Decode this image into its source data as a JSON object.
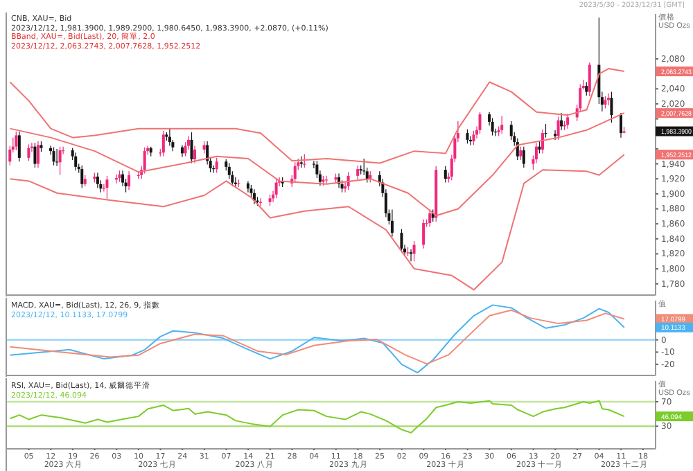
{
  "chart_data": [
    {
      "type": "candlestick",
      "title": "CNB, XAU=, Bid",
      "subtitle": "2023/12/12, 1,981.3900, 1,989.2900, 1,980.6450, 1,983.3900, +2.0870, (+0.11%)",
      "ylabel": "價格 USD Ozs",
      "tick_labels": "y",
      "colors": [
        "#f0287c",
        "#f0287c",
        "#f0287c",
        "#151515",
        "#f0287c",
        "#f0287c",
        "#151515",
        "#f0287c",
        "#151515",
        "#151515",
        "#151515",
        "#151515",
        "#f0287c",
        "#f0287c",
        "#151515",
        "#151515",
        "#151515",
        "#151515",
        "#f0287c",
        "#f0287c",
        "#151515",
        "#151515",
        "#f0287c",
        "#f0287c",
        "#f0287c",
        "#f0287c",
        "#151515",
        "#151515",
        "#f0287c",
        "#f0287c",
        "#f0287c",
        "#f0287c",
        "#f0287c",
        "#151515",
        "#f0287c",
        "#f0287c",
        "#151515",
        "#151515",
        "#151515",
        "#151515",
        "#f0287c",
        "#f0287c",
        "#151515",
        "#f0287c",
        "#f0287c",
        "#151515",
        "#151515",
        "#151515",
        "#f0287c",
        "#151515",
        "#151515",
        "#151515",
        "#151515",
        "#f0287c",
        "#151515",
        "#151515",
        "#151515",
        "#151515",
        "#f0287c",
        "#f0287c",
        "#f0287c",
        "#f0287c",
        "#f0287c",
        "#151515",
        "#f0287c",
        "#f0287c",
        "#f0287c",
        "#151515",
        "#f0287c",
        "#151515",
        "#151515",
        "#151515",
        "#f0287c",
        "#f0287c",
        "#f0287c",
        "#151515",
        "#151515",
        "#f0287c",
        "#f0287c",
        "#f0287c",
        "#151515",
        "#151515",
        "#151515",
        "#f0287c",
        "#151515",
        "#151515",
        "#151515",
        "#151515",
        "#151515",
        "#151515",
        "#151515",
        "#f0287c",
        "#151515",
        "#f0287c",
        "#f0287c",
        "#f0287c",
        "#f0287c",
        "#151515",
        "#f0287c",
        "#151515",
        "#f0287c",
        "#f0287c",
        "#f0287c",
        "#f0287c",
        "#151515",
        "#151515",
        "#f0287c",
        "#f0287c",
        "#f0287c",
        "#151515",
        "#151515",
        "#151515",
        "#f0287c",
        "#f0287c",
        "#151515",
        "#151515",
        "#151515",
        "#f0287c",
        "#151515",
        "#f0287c",
        "#f0287c",
        "#151515",
        "#f0287c",
        "#151515",
        "#151515",
        "#f0287c",
        "#151515",
        "#f0287c",
        "#f0287c",
        "#f0287c",
        "#f0287c",
        "#f0287c",
        "#151515",
        "#f0287c",
        "#151515",
        "#151515",
        "#f0287c",
        "#f0287c",
        "#151515",
        "#151515",
        "#f0287c"
      ],
      "xlim": [
        "2023-05-29",
        "2023-12-22"
      ],
      "ylim": [
        1765,
        2140
      ],
      "yticks": [
        {
          "value": 2063.2743,
          "label": "2,063.2743"
        },
        {
          "value": 2007.7628,
          "label": "2,007.7628"
        },
        {
          "value": 1983.39,
          "label": "1,983.3900"
        },
        {
          "value": 1952.2512,
          "label": "1,952.2512"
        },
        {
          "value": 2080,
          "label": "2,080"
        },
        {
          "value": 2060,
          "label": null
        },
        {
          "value": 2040,
          "label": "2,040"
        },
        {
          "value": 2020,
          "label": "2,020"
        },
        {
          "value": 2000,
          "label": null
        },
        {
          "value": 1980,
          "label": null
        },
        {
          "value": 1960,
          "label": null
        },
        {
          "value": 1940,
          "label": "1,940"
        },
        {
          "value": 1920,
          "label": "1,920"
        },
        {
          "value": 1900,
          "label": "1,900"
        },
        {
          "value": 1880,
          "label": "1,880"
        },
        {
          "value": 1860,
          "label": "1,860"
        },
        {
          "value": 1840,
          "label": "1,840"
        },
        {
          "value": 1820,
          "label": "1,820"
        },
        {
          "value": 1800,
          "label": "1,800"
        },
        {
          "value": 1780,
          "label": "1,780"
        }
      ],
      "x": [
        "2023-05-30",
        "2023-05-31",
        "2023-06-01",
        "2023-06-02",
        "2023-06-05",
        "2023-06-06",
        "2023-06-07",
        "2023-06-08",
        "2023-06-09",
        "2023-06-12",
        "2023-06-13",
        "2023-06-14",
        "2023-06-15",
        "2023-06-16",
        "2023-06-19",
        "2023-06-20",
        "2023-06-21",
        "2023-06-22",
        "2023-06-23",
        "2023-06-26",
        "2023-06-27",
        "2023-06-28",
        "2023-06-29",
        "2023-06-30",
        "2023-07-03",
        "2023-07-04",
        "2023-07-05",
        "2023-07-06",
        "2023-07-07",
        "2023-07-10",
        "2023-07-11",
        "2023-07-12",
        "2023-07-13",
        "2023-07-14",
        "2023-07-17",
        "2023-07-18",
        "2023-07-19",
        "2023-07-20",
        "2023-07-21",
        "2023-07-24",
        "2023-07-25",
        "2023-07-26",
        "2023-07-27",
        "2023-07-28",
        "2023-07-31",
        "2023-08-01",
        "2023-08-02",
        "2023-08-03",
        "2023-08-04",
        "2023-08-07",
        "2023-08-08",
        "2023-08-09",
        "2023-08-10",
        "2023-08-11",
        "2023-08-14",
        "2023-08-15",
        "2023-08-16",
        "2023-08-17",
        "2023-08-18",
        "2023-08-21",
        "2023-08-22",
        "2023-08-23",
        "2023-08-24",
        "2023-08-25",
        "2023-08-28",
        "2023-08-29",
        "2023-08-30",
        "2023-08-31",
        "2023-09-01",
        "2023-09-04",
        "2023-09-05",
        "2023-09-06",
        "2023-09-07",
        "2023-09-08",
        "2023-09-11",
        "2023-09-12",
        "2023-09-13",
        "2023-09-14",
        "2023-09-15",
        "2023-09-18",
        "2023-09-19",
        "2023-09-20",
        "2023-09-21",
        "2023-09-22",
        "2023-09-25",
        "2023-09-26",
        "2023-09-27",
        "2023-09-28",
        "2023-09-29",
        "2023-10-02",
        "2023-10-03",
        "2023-10-04",
        "2023-10-05",
        "2023-10-06",
        "2023-10-09",
        "2023-10-10",
        "2023-10-11",
        "2023-10-12",
        "2023-10-13",
        "2023-10-16",
        "2023-10-17",
        "2023-10-18",
        "2023-10-19",
        "2023-10-20",
        "2023-10-23",
        "2023-10-24",
        "2023-10-25",
        "2023-10-26",
        "2023-10-27",
        "2023-10-30",
        "2023-10-31",
        "2023-11-01",
        "2023-11-02",
        "2023-11-03",
        "2023-11-06",
        "2023-11-07",
        "2023-11-08",
        "2023-11-09",
        "2023-11-10",
        "2023-11-13",
        "2023-11-14",
        "2023-11-15",
        "2023-11-16",
        "2023-11-17",
        "2023-11-20",
        "2023-11-21",
        "2023-11-22",
        "2023-11-23",
        "2023-11-24",
        "2023-11-27",
        "2023-11-28",
        "2023-11-29",
        "2023-11-30",
        "2023-12-01",
        "2023-12-04",
        "2023-12-05",
        "2023-12-06",
        "2023-12-07",
        "2023-12-08",
        "2023-12-11",
        "2023-12-12"
      ],
      "ohlc": [
        [
          1943,
          1964,
          1938,
          1959
        ],
        [
          1959,
          1975,
          1955,
          1963
        ],
        [
          1963,
          1983,
          1958,
          1978
        ],
        [
          1978,
          1983,
          1943,
          1948
        ],
        [
          1948,
          1966,
          1944,
          1961
        ],
        [
          1961,
          1968,
          1956,
          1963
        ],
        [
          1963,
          1968,
          1935,
          1940
        ],
        [
          1940,
          1970,
          1935,
          1965
        ],
        [
          1965,
          1970,
          1956,
          1961
        ],
        [
          1961,
          1964,
          1952,
          1957
        ],
        [
          1957,
          1962,
          1938,
          1943
        ],
        [
          1943,
          1960,
          1937,
          1942
        ],
        [
          1942,
          1963,
          1925,
          1958
        ],
        [
          1958,
          1963,
          1953,
          1958
        ],
        [
          1958,
          1961,
          1945,
          1950
        ],
        [
          1950,
          1955,
          1931,
          1936
        ],
        [
          1936,
          1940,
          1928,
          1933
        ],
        [
          1933,
          1938,
          1908,
          1913
        ],
        [
          1913,
          1925,
          1910,
          1920
        ],
        [
          1920,
          1928,
          1915,
          1923
        ],
        [
          1923,
          1928,
          1908,
          1913
        ],
        [
          1913,
          1918,
          1902,
          1907
        ],
        [
          1907,
          1913,
          1903,
          1908
        ],
        [
          1908,
          1924,
          1893,
          1919
        ],
        [
          1919,
          1926,
          1914,
          1921
        ],
        [
          1921,
          1931,
          1916,
          1926
        ],
        [
          1926,
          1931,
          1910,
          1915
        ],
        [
          1915,
          1920,
          1902,
          1910
        ],
        [
          1910,
          1930,
          1905,
          1925
        ],
        [
          1925,
          1930,
          1920,
          1925
        ],
        [
          1925,
          1937,
          1920,
          1932
        ],
        [
          1932,
          1962,
          1927,
          1957
        ],
        [
          1957,
          1964,
          1952,
          1961
        ],
        [
          1961,
          1963,
          1950,
          1955
        ],
        [
          1955,
          1960,
          1950,
          1955
        ],
        [
          1955,
          1984,
          1950,
          1979
        ],
        [
          1979,
          1982,
          1971,
          1976
        ],
        [
          1976,
          1987,
          1964,
          1969
        ],
        [
          1969,
          1972,
          1957,
          1962
        ],
        [
          1962,
          1965,
          1949,
          1954
        ],
        [
          1954,
          1969,
          1950,
          1964
        ],
        [
          1964,
          1977,
          1959,
          1972
        ],
        [
          1972,
          1982,
          1941,
          1946
        ],
        [
          1946,
          1964,
          1941,
          1959
        ],
        [
          1959,
          1970,
          1954,
          1965
        ],
        [
          1965,
          1970,
          1939,
          1944
        ],
        [
          1944,
          1949,
          1929,
          1934
        ],
        [
          1934,
          1938,
          1928,
          1933
        ],
        [
          1933,
          1948,
          1928,
          1943
        ],
        [
          1943,
          1946,
          1931,
          1936
        ],
        [
          1936,
          1941,
          1920,
          1925
        ],
        [
          1925,
          1930,
          1910,
          1915
        ],
        [
          1915,
          1922,
          1908,
          1913
        ],
        [
          1913,
          1919,
          1909,
          1914
        ],
        [
          1914,
          1917,
          1902,
          1907
        ],
        [
          1907,
          1912,
          1896,
          1901
        ],
        [
          1901,
          1906,
          1886,
          1891
        ],
        [
          1891,
          1896,
          1884,
          1889
        ],
        [
          1889,
          1894,
          1884,
          1889
        ],
        [
          1889,
          1899,
          1884,
          1894
        ],
        [
          1894,
          1904,
          1889,
          1899
        ],
        [
          1899,
          1920,
          1894,
          1915
        ],
        [
          1915,
          1922,
          1910,
          1917
        ],
        [
          1917,
          1922,
          1909,
          1914
        ],
        [
          1914,
          1925,
          1909,
          1920
        ],
        [
          1920,
          1942,
          1915,
          1937
        ],
        [
          1937,
          1947,
          1932,
          1942
        ],
        [
          1942,
          1950,
          1935,
          1940
        ],
        [
          1940,
          1953,
          1935,
          1940
        ],
        [
          1940,
          1944,
          1934,
          1939
        ],
        [
          1939,
          1944,
          1921,
          1926
        ],
        [
          1926,
          1931,
          1911,
          1916
        ],
        [
          1916,
          1924,
          1911,
          1919
        ],
        [
          1919,
          1924,
          1914,
          1919
        ],
        [
          1919,
          1927,
          1914,
          1922
        ],
        [
          1922,
          1927,
          1908,
          1913
        ],
        [
          1913,
          1918,
          1902,
          1907
        ],
        [
          1907,
          1915,
          1902,
          1910
        ],
        [
          1910,
          1929,
          1905,
          1924
        ],
        [
          1924,
          1938,
          1919,
          1933
        ],
        [
          1933,
          1938,
          1926,
          1931
        ],
        [
          1931,
          1947,
          1925,
          1930
        ],
        [
          1930,
          1935,
          1915,
          1920
        ],
        [
          1920,
          1930,
          1915,
          1925
        ],
        [
          1925,
          1930,
          1910,
          1915
        ],
        [
          1915,
          1920,
          1896,
          1901
        ],
        [
          1901,
          1906,
          1869,
          1874
        ],
        [
          1874,
          1879,
          1859,
          1864
        ],
        [
          1864,
          1879,
          1843,
          1848
        ],
        [
          1848,
          1853,
          1822,
          1827
        ],
        [
          1827,
          1832,
          1817,
          1822
        ],
        [
          1822,
          1829,
          1817,
          1822
        ],
        [
          1822,
          1826,
          1810,
          1820
        ],
        [
          1820,
          1837,
          1810,
          1832
        ],
        [
          1832,
          1866,
          1827,
          1861
        ],
        [
          1861,
          1866,
          1856,
          1861
        ],
        [
          1861,
          1879,
          1856,
          1874
        ],
        [
          1874,
          1879,
          1863,
          1868
        ],
        [
          1868,
          1937,
          1863,
          1932
        ],
        [
          1932,
          1937,
          1915,
          1920
        ],
        [
          1920,
          1928,
          1915,
          1923
        ],
        [
          1923,
          1952,
          1918,
          1947
        ],
        [
          1947,
          1979,
          1942,
          1974
        ],
        [
          1974,
          1997,
          1969,
          1981
        ],
        [
          1981,
          1986,
          1967,
          1972
        ],
        [
          1972,
          1977,
          1965,
          1970
        ],
        [
          1970,
          1984,
          1965,
          1979
        ],
        [
          1979,
          1990,
          1974,
          1985
        ],
        [
          1985,
          2009,
          1980,
          2006
        ],
        [
          2006,
          2009,
          1991,
          1996
        ],
        [
          1996,
          2001,
          1978,
          1983
        ],
        [
          1983,
          1987,
          1977,
          1982
        ],
        [
          1982,
          1990,
          1977,
          1985
        ],
        [
          1985,
          2004,
          1980,
          1992
        ],
        [
          1992,
          1997,
          1972,
          1977
        ],
        [
          1977,
          1982,
          1964,
          1969
        ],
        [
          1969,
          1974,
          1945,
          1950
        ],
        [
          1950,
          1963,
          1945,
          1958
        ],
        [
          1958,
          1963,
          1935,
          1940
        ],
        [
          1940,
          1951,
          1932,
          1946
        ],
        [
          1946,
          1968,
          1941,
          1963
        ],
        [
          1963,
          1970,
          1954,
          1959
        ],
        [
          1959,
          1986,
          1954,
          1981
        ],
        [
          1981,
          1993,
          1975,
          1980
        ],
        [
          1980,
          1985,
          1972,
          1977
        ],
        [
          1977,
          2003,
          1972,
          1998
        ],
        [
          1998,
          2008,
          1985,
          1990
        ],
        [
          1990,
          1997,
          1985,
          1992
        ],
        [
          1992,
          2007,
          1987,
          2002
        ],
        [
          2002,
          2019,
          1997,
          2014
        ],
        [
          2014,
          2046,
          2009,
          2041
        ],
        [
          2041,
          2052,
          2039,
          2044
        ],
        [
          2044,
          2049,
          2031,
          2036
        ],
        [
          2036,
          2075,
          2030,
          2072
        ],
        [
          2072,
          2135,
          2020,
          2029
        ],
        [
          2029,
          2036,
          2010,
          2019
        ],
        [
          2019,
          2030,
          2014,
          2025
        ],
        [
          2025,
          2034,
          2018,
          2028
        ],
        [
          2028,
          2036,
          1995,
          2005
        ],
        [
          2005,
          2008,
          1975,
          1981
        ],
        [
          1981.39,
          1989.29,
          1980.645,
          1983.39
        ]
      ],
      "series": [
        {
          "type": "line",
          "color": "#f07272",
          "x": [
            "2023-05-30",
            "2023-06-05",
            "2023-06-12",
            "2023-06-19",
            "2023-06-26",
            "2023-07-10",
            "2023-07-25",
            "2023-08-10",
            "2023-08-18",
            "2023-08-28",
            "2023-09-08",
            "2023-09-25",
            "2023-10-06",
            "2023-10-16",
            "2023-10-20",
            "2023-10-30",
            "2023-11-06",
            "2023-11-14",
            "2023-11-24",
            "2023-11-30",
            "2023-12-04",
            "2023-12-07",
            "2023-12-12"
          ],
          "values": [
            2049,
            2024,
            1987,
            1975,
            1978,
            1987,
            1987,
            1987,
            1981,
            1944,
            1947,
            1941,
            1957,
            1954,
            1987,
            2049,
            2036,
            2009,
            2005,
            2012,
            2060,
            2067,
            2063.2743
          ]
        },
        {
          "type": "line",
          "color": "#f07272",
          "x": [
            "2023-05-30",
            "2023-06-12",
            "2023-06-26",
            "2023-07-10",
            "2023-07-25",
            "2023-08-04",
            "2023-08-14",
            "2023-08-24",
            "2023-09-08",
            "2023-09-22",
            "2023-10-04",
            "2023-10-13",
            "2023-10-20",
            "2023-10-31",
            "2023-11-08",
            "2023-11-21",
            "2023-11-30",
            "2023-12-12"
          ],
          "values": [
            1987,
            1975,
            1957,
            1929,
            1941,
            1950,
            1947,
            1917,
            1913,
            1920,
            1901,
            1871,
            1880,
            1925,
            1965,
            1975,
            1985,
            2007.7628
          ]
        },
        {
          "type": "line",
          "color": "#f07272",
          "x": [
            "2023-05-30",
            "2023-06-05",
            "2023-06-14",
            "2023-06-30",
            "2023-07-18",
            "2023-07-31",
            "2023-08-07",
            "2023-08-15",
            "2023-08-21",
            "2023-09-01",
            "2023-09-15",
            "2023-09-27",
            "2023-10-06",
            "2023-10-18",
            "2023-10-25",
            "2023-11-03",
            "2023-11-10",
            "2023-11-16",
            "2023-11-30",
            "2023-12-04",
            "2023-12-12"
          ],
          "values": [
            1920,
            1917,
            1901,
            1892,
            1883,
            1898,
            1917,
            1895,
            1868,
            1877,
            1883,
            1852,
            1800,
            1791,
            1772,
            1809,
            1914,
            1932,
            1930,
            1925,
            1952.2512
          ]
        }
      ],
      "annotations": [
        "BBand, XAU=, Bid(Last), 20, 簡單, 2.0",
        "2023/12/12, 2,063.2743, 2,007.7628, 1,952.2512",
        "2023/5/30 - 2023/12/31 [GMT]"
      ]
    },
    {
      "type": "line",
      "title": "MACD, XAU=, Bid(Last), 12, 26, 9, 指數",
      "subtitle": "2023/12/12, 10.1133, 17.0799",
      "ylabel": "值",
      "tick_labels": "y",
      "xlim": [
        "2023-05-29",
        "2023-12-22"
      ],
      "ylim": [
        -29,
        32
      ],
      "yticks": [
        {
          "value": 17.0799,
          "label": "17.0799"
        },
        {
          "value": 10.1133,
          "label": "10.1133"
        },
        0,
        -10,
        -20
      ],
      "ref_lines": [
        {
          "axis": "y",
          "value": 0,
          "color": "#8fd0f5"
        }
      ],
      "series": [
        {
          "type": "line",
          "color": "#4db3f0",
          "x": [
            "2023-05-30",
            "2023-06-18",
            "2023-06-29",
            "2023-07-08",
            "2023-07-12",
            "2023-07-17",
            "2023-07-21",
            "2023-07-28",
            "2023-08-06",
            "2023-08-13",
            "2023-08-21",
            "2023-08-28",
            "2023-09-04",
            "2023-09-13",
            "2023-09-20",
            "2023-09-26",
            "2023-10-02",
            "2023-10-07",
            "2023-10-12",
            "2023-10-19",
            "2023-10-25",
            "2023-10-31",
            "2023-11-06",
            "2023-11-11",
            "2023-11-17",
            "2023-11-23",
            "2023-11-29",
            "2023-12-04",
            "2023-12-07",
            "2023-12-12"
          ],
          "values": [
            -12.5,
            -8,
            -15.5,
            -12.5,
            -8,
            2.7,
            7.3,
            5.8,
            1.3,
            -6.8,
            -15.5,
            -9.2,
            1.9,
            -0.7,
            1.2,
            -2.6,
            -20,
            -26.8,
            -16.3,
            4.6,
            19.7,
            28.4,
            26.1,
            17.8,
            9.5,
            12.2,
            17.8,
            25.4,
            22.4,
            10.1133
          ]
        },
        {
          "type": "line",
          "color": "#f08c78",
          "x": [
            "2023-05-30",
            "2023-06-14",
            "2023-07-01",
            "2023-07-10",
            "2023-07-17",
            "2023-07-28",
            "2023-08-06",
            "2023-08-17",
            "2023-08-26",
            "2023-09-04",
            "2023-09-15",
            "2023-09-24",
            "2023-10-03",
            "2023-10-10",
            "2023-10-17",
            "2023-10-23",
            "2023-10-30",
            "2023-11-06",
            "2023-11-12",
            "2023-11-21",
            "2023-11-30",
            "2023-12-06",
            "2023-12-12"
          ],
          "values": [
            -5.7,
            -9.6,
            -14,
            -12.5,
            -3,
            4.6,
            3.4,
            -9.2,
            -12.1,
            -4.6,
            -0.7,
            0.4,
            -12.1,
            -19.6,
            -12.1,
            2.7,
            19.7,
            24.2,
            17.8,
            13.3,
            15.9,
            21.6,
            17.0799
          ]
        }
      ]
    },
    {
      "type": "line",
      "title": "RSI, XAU=, Bid(Last), 14, 威爾德平滑",
      "subtitle": "2023/12/12, 46.094",
      "ylabel": "值 USD Ozs",
      "xlim": [
        "2023-05-29",
        "2023-12-22"
      ],
      "ylim": [
        -7,
        104
      ],
      "yticks": [
        {
          "value": 46.094,
          "label": "46.094"
        },
        30,
        70
      ],
      "xticks": [
        {
          "value": "2023-06-05",
          "label": "05"
        },
        {
          "value": "2023-06-12",
          "label": "12"
        },
        {
          "value": "2023-06-19",
          "label": "19"
        },
        {
          "value": "2023-06-26",
          "label": "26"
        },
        {
          "value": "2023-07-03",
          "label": "03"
        },
        {
          "value": "2023-07-10",
          "label": "10"
        },
        {
          "value": "2023-07-17",
          "label": "17"
        },
        {
          "value": "2023-07-24",
          "label": "24"
        },
        {
          "value": "2023-07-31",
          "label": "31"
        },
        {
          "value": "2023-08-07",
          "label": "07"
        },
        {
          "value": "2023-08-14",
          "label": "14"
        },
        {
          "value": "2023-08-21",
          "label": "21"
        },
        {
          "value": "2023-08-28",
          "label": "28"
        },
        {
          "value": "2023-09-04",
          "label": "04"
        },
        {
          "value": "2023-09-11",
          "label": "11"
        },
        {
          "value": "2023-09-18",
          "label": "18"
        },
        {
          "value": "2023-09-25",
          "label": "25"
        },
        {
          "value": "2023-10-02",
          "label": "02"
        },
        {
          "value": "2023-10-09",
          "label": "09"
        },
        {
          "value": "2023-10-16",
          "label": "16"
        },
        {
          "value": "2023-10-23",
          "label": "23"
        },
        {
          "value": "2023-10-30",
          "label": "30"
        },
        {
          "value": "2023-11-06",
          "label": "06"
        },
        {
          "value": "2023-11-13",
          "label": "13"
        },
        {
          "value": "2023-11-20",
          "label": "20"
        },
        {
          "value": "2023-11-27",
          "label": "27"
        },
        {
          "value": "2023-12-04",
          "label": "04"
        },
        {
          "value": "2023-12-11",
          "label": "11"
        },
        {
          "value": "2023-12-18",
          "label": "18"
        }
      ],
      "ref_lines": [
        {
          "axis": "y",
          "value": 70,
          "color": "#c2e59a"
        },
        {
          "axis": "y",
          "value": 30,
          "color": "#a8d870"
        }
      ],
      "series": [
        {
          "type": "line",
          "color": "#7ccc2a",
          "x": [
            "2023-05-30",
            "2023-06-02",
            "2023-06-05",
            "2023-06-09",
            "2023-06-15",
            "2023-06-23",
            "2023-06-27",
            "2023-06-30",
            "2023-07-06",
            "2023-07-10",
            "2023-07-13",
            "2023-07-18",
            "2023-07-21",
            "2023-07-26",
            "2023-07-28",
            "2023-08-01",
            "2023-08-07",
            "2023-08-10",
            "2023-08-15",
            "2023-08-21",
            "2023-08-23",
            "2023-08-25",
            "2023-08-30",
            "2023-09-04",
            "2023-09-08",
            "2023-09-14",
            "2023-09-19",
            "2023-09-22",
            "2023-09-27",
            "2023-10-02",
            "2023-10-05",
            "2023-10-06",
            "2023-10-10",
            "2023-10-13",
            "2023-10-16",
            "2023-10-20",
            "2023-10-24",
            "2023-10-30",
            "2023-10-31",
            "2023-11-06",
            "2023-11-08",
            "2023-11-13",
            "2023-11-16",
            "2023-11-20",
            "2023-11-23",
            "2023-11-29",
            "2023-12-01",
            "2023-12-04",
            "2023-12-05",
            "2023-12-07",
            "2023-12-12"
          ],
          "values": [
            42.6,
            48.3,
            41.1,
            48.3,
            43.9,
            35.2,
            41.1,
            36.7,
            42.6,
            46.1,
            58.5,
            64.3,
            55.6,
            59.1,
            49.8,
            53.5,
            48.3,
            39,
            33.9,
            29.5,
            39,
            48.3,
            57,
            55.6,
            46.1,
            41.1,
            53.5,
            49.8,
            39,
            24.3,
            19.3,
            24.3,
            42.6,
            60.7,
            64.3,
            70,
            67.8,
            71.5,
            66.5,
            64.3,
            57,
            46.1,
            53.5,
            58.5,
            60.7,
            70,
            67.8,
            71.5,
            58.5,
            57,
            46.094
          ]
        }
      ],
      "x2lim": [
        "2023-05-29",
        "2023-12-22"
      ],
      "x2ticks": [
        {
          "value": "2023-06-16",
          "label": "2023 六月"
        },
        {
          "value": "2023-07-16",
          "label": "2023 七月"
        },
        {
          "value": "2023-08-16",
          "label": "2023 八月"
        },
        {
          "value": "2023-09-15",
          "label": "2023 九月"
        },
        {
          "value": "2023-10-16",
          "label": "2023 十月"
        },
        {
          "value": "2023-11-15",
          "label": "2023 十一月"
        },
        {
          "value": "2023-12-12",
          "label": "2023 十二月"
        }
      ]
    }
  ]
}
